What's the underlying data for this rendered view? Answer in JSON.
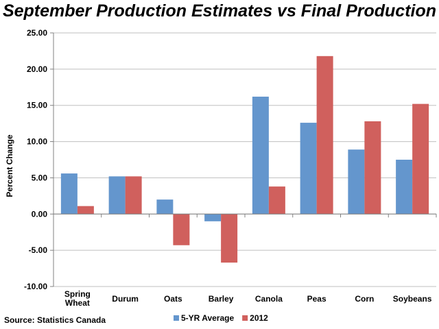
{
  "chart_data": {
    "type": "bar",
    "title": "September Production Estimates vs Final Production",
    "ylabel": "Percent Change",
    "xlabel": "",
    "ylim": [
      -10,
      25
    ],
    "yticks": [
      "-10.00",
      "-5.00",
      "0.00",
      "5.00",
      "10.00",
      "15.00",
      "20.00",
      "25.00"
    ],
    "categories": [
      "Spring Wheat",
      "Durum",
      "Oats",
      "Barley",
      "Canola",
      "Peas",
      "Corn",
      "Soybeans"
    ],
    "series": [
      {
        "name": "5-YR Average",
        "color": "#6496cd",
        "values": [
          5.6,
          5.2,
          2.0,
          -1.0,
          16.2,
          12.6,
          8.9,
          7.5
        ]
      },
      {
        "name": "2012",
        "color": "#d0605d",
        "values": [
          1.1,
          5.2,
          -4.3,
          -6.7,
          3.8,
          21.8,
          12.8,
          15.2
        ]
      }
    ],
    "legend_position": "bottom"
  },
  "source": "Source: Statistics Canada"
}
